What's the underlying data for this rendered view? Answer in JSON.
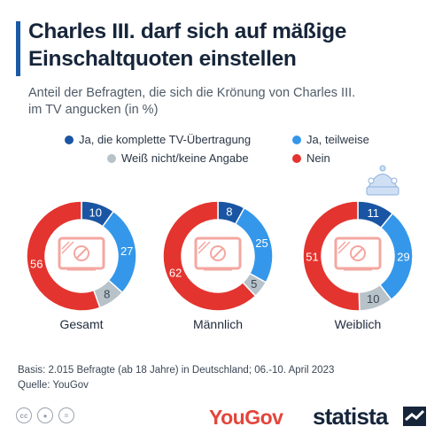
{
  "header": {
    "title_line1": "Charles III. darf sich auf mäßige",
    "title_line2": "Einschaltquoten einstellen",
    "subtitle_line1": "Anteil der Befragten, die sich die Krönung von Charles III.",
    "subtitle_line2": "im TV angucken (in %)"
  },
  "colors": {
    "dark_blue": "#1a55a3",
    "light_blue": "#3497ea",
    "gray": "#b7c2c9",
    "red": "#e3342f",
    "tv_icon": "#f4a7a0",
    "crown": "#cfe0f5"
  },
  "chart_data": {
    "type": "donut",
    "title": "Charles III. darf sich auf mäßige Einschaltquoten einstellen",
    "unit": "%",
    "legend_placement": "top",
    "series": [
      {
        "name": "Ja, die komplette TV-Übertragung",
        "color": "#1a55a3"
      },
      {
        "name": "Ja, teilweise",
        "color": "#3497ea"
      },
      {
        "name": "Weiß nicht/keine Angabe",
        "color": "#b7c2c9"
      },
      {
        "name": "Nein",
        "color": "#e3342f"
      }
    ],
    "groups": [
      {
        "label": "Gesamt",
        "values": [
          10,
          27,
          8,
          56
        ]
      },
      {
        "label": "Männlich",
        "values": [
          8,
          25,
          5,
          62
        ]
      },
      {
        "label": "Weiblich",
        "values": [
          11,
          29,
          10,
          51
        ]
      }
    ]
  },
  "footer": {
    "basis": "Basis: 2.015 Befragte (ab 18 Jahre) in Deutschland; 06.-10. April 2023",
    "source": "Quelle: YouGov",
    "yougov_logo": "YouGov",
    "statista_logo": "statista",
    "cc_icons": [
      "cc-icon",
      "by-icon",
      "equals-icon"
    ]
  }
}
